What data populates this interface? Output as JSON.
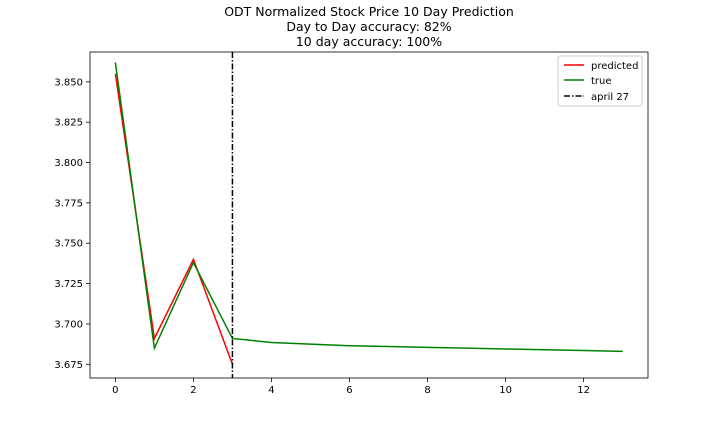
{
  "chart_data": {
    "type": "line",
    "title_lines": [
      "ODT Normalized Stock Price 10 Day Prediction",
      "Day to Day accuracy: 82%",
      "10 day accuracy: 100%"
    ],
    "xlabel": "",
    "ylabel": "",
    "xlim": [
      -0.65,
      13.65
    ],
    "ylim": [
      3.6665,
      3.8685
    ],
    "x_ticks": [
      0,
      2,
      4,
      6,
      8,
      10,
      12
    ],
    "x_tick_labels": [
      "0",
      "2",
      "4",
      "6",
      "8",
      "10",
      "12"
    ],
    "y_ticks": [
      3.675,
      3.7,
      3.725,
      3.75,
      3.775,
      3.8,
      3.825,
      3.85
    ],
    "y_tick_labels": [
      "3.675",
      "3.700",
      "3.725",
      "3.750",
      "3.775",
      "3.800",
      "3.825",
      "3.850"
    ],
    "grid": false,
    "legend_position": "top-right",
    "series": [
      {
        "name": "predicted",
        "color": "#ff0000",
        "x": [
          0,
          1,
          2,
          3
        ],
        "values": [
          3.855,
          3.691,
          3.74,
          3.675
        ]
      },
      {
        "name": "true",
        "color": "#008000",
        "x": [
          0,
          1,
          2,
          3,
          4,
          5,
          6,
          7,
          8,
          9,
          10,
          11,
          12,
          13
        ],
        "values": [
          3.862,
          3.685,
          3.738,
          3.691,
          3.6885,
          3.6875,
          3.6865,
          3.686,
          3.6855,
          3.685,
          3.6845,
          3.684,
          3.6835,
          3.683
        ]
      }
    ],
    "vline": {
      "name": "april 27",
      "x": 3,
      "color": "#000000",
      "style": "dash-dot"
    }
  }
}
